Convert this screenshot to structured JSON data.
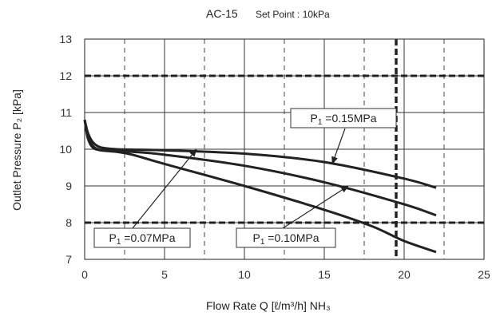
{
  "chart_data": {
    "type": "line",
    "title": "AC-15",
    "subtitle": "Set Point : 10kPa",
    "xlabel": "Flow Rate Q [ℓ/m³/h] NH₃",
    "ylabel": "Outlet Pressure P₂ [kPa]",
    "xlim": [
      0,
      25
    ],
    "ylim": [
      7,
      13
    ],
    "xticks": [
      0,
      5,
      10,
      15,
      20,
      25
    ],
    "yticks": [
      7,
      8,
      9,
      10,
      11,
      12,
      13
    ],
    "grid": true,
    "reference_lines": {
      "horizontal": [
        12,
        8
      ],
      "vertical": [
        19.5
      ]
    },
    "series": [
      {
        "name": "P₁ =0.15MPa",
        "x": [
          0,
          0.2,
          0.5,
          1,
          2,
          3,
          5,
          10,
          15,
          20,
          22
        ],
        "y": [
          10.8,
          10.45,
          10.2,
          10.05,
          10.0,
          9.99,
          9.97,
          9.88,
          9.65,
          9.2,
          8.95
        ]
      },
      {
        "name": "P₁ =0.10MPa",
        "x": [
          0,
          0.2,
          0.5,
          1,
          2,
          3,
          5,
          10,
          15,
          20,
          22
        ],
        "y": [
          10.8,
          10.4,
          10.1,
          9.98,
          9.95,
          9.93,
          9.85,
          9.55,
          9.1,
          8.5,
          8.2
        ]
      },
      {
        "name": "P₁ =0.07MPa",
        "x": [
          0,
          0.2,
          0.5,
          1,
          2,
          3,
          5,
          10,
          15,
          18,
          20,
          22
        ],
        "y": [
          10.8,
          10.3,
          10.05,
          9.97,
          9.93,
          9.85,
          9.6,
          9.0,
          8.35,
          7.9,
          7.5,
          7.2
        ]
      }
    ],
    "annotations": [
      {
        "label_parts": [
          "P",
          "1",
          " =0.15MPa"
        ],
        "points_to": [
          15.5,
          9.6
        ]
      },
      {
        "label_parts": [
          "P",
          "1",
          " =0.07MPa"
        ],
        "points_to": [
          7,
          10.0
        ]
      },
      {
        "label_parts": [
          "P",
          "1",
          " =0.10MPa"
        ],
        "points_to": [
          16.5,
          9.0
        ]
      }
    ]
  }
}
